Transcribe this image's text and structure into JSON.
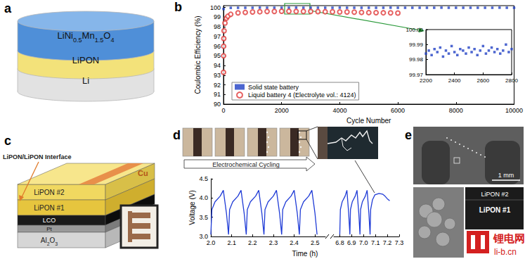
{
  "panels": {
    "a": {
      "label": "a",
      "layers": [
        "LiNi0.5Mn1.5O4",
        "LiPON",
        "Li"
      ]
    },
    "b": {
      "label": "b"
    },
    "c": {
      "label": "c",
      "interface_label": "LiPON/LiPON Interface",
      "layers": [
        "LiPON #2",
        "LiPON #1",
        "LCO",
        "Pt",
        "Al2O3"
      ],
      "contact": "Cu"
    },
    "d": {
      "label": "d",
      "caption": "Electrochemical Cycling"
    },
    "e": {
      "label": "e",
      "scale_bar": "1 mm",
      "layers": [
        "LiPON #2",
        "LiPON #1"
      ]
    }
  },
  "watermark": {
    "text": "锂电网",
    "url": "li-b.cn"
  },
  "chart_data": [
    {
      "type": "scatter",
      "x_label": "Cycle Number",
      "y_label": "Coulombic Efficiency (%)",
      "xlim": [
        0,
        10000
      ],
      "xticks": [
        0,
        2000,
        4000,
        6000,
        8000,
        10000
      ],
      "ylim": [
        90,
        100.2
      ],
      "yticks": [
        90,
        91,
        92,
        93,
        94,
        95,
        96,
        97,
        98,
        99,
        100
      ],
      "grid": false,
      "legend": "lower left",
      "series": [
        {
          "name": "Solid state battery",
          "color": "#2140c4",
          "marker": "square",
          "x": [
            1,
            250,
            500,
            750,
            1000,
            1250,
            1500,
            1750,
            2000,
            2250,
            2500,
            2750,
            3000,
            3250,
            3500,
            3750,
            4000,
            4250,
            4500,
            4750,
            5000,
            5250,
            5500,
            5750,
            6000,
            6250,
            6500,
            6750,
            7000,
            7250,
            7500,
            7750,
            8000,
            8250,
            8500,
            8750,
            9000,
            9250,
            9500,
            9750,
            10000
          ],
          "values": [
            99.85,
            99.97,
            99.98,
            99.98,
            99.98,
            99.99,
            99.98,
            99.98,
            99.98,
            99.98,
            99.99,
            99.98,
            99.98,
            99.98,
            99.98,
            99.98,
            99.99,
            99.98,
            99.98,
            99.98,
            99.98,
            99.98,
            99.98,
            99.99,
            99.98,
            99.98,
            99.98,
            99.98,
            99.98,
            99.98,
            99.99,
            99.98,
            99.98,
            99.98,
            99.98,
            99.98,
            99.98,
            99.98,
            99.99,
            99.98,
            99.98
          ]
        },
        {
          "name": "Liquid battery 4 (Electrolyte vol.: 4124)",
          "color": "#e03a3a",
          "marker": "circle_open",
          "x": [
            1,
            3,
            5,
            10,
            20,
            50,
            100,
            150,
            250,
            500,
            750,
            1000,
            1250,
            1500,
            1750,
            2000,
            2250,
            2500,
            2750,
            3000,
            3250,
            3500,
            3750,
            4000,
            4250,
            4500,
            4750,
            5000,
            5250,
            5500,
            5750,
            6000
          ],
          "values": [
            93.3,
            95.0,
            96.0,
            96.8,
            97.6,
            98.4,
            98.9,
            99.1,
            99.3,
            99.45,
            99.5,
            99.55,
            99.57,
            99.6,
            99.6,
            99.62,
            99.62,
            99.6,
            99.6,
            99.6,
            99.58,
            99.57,
            99.56,
            99.55,
            99.54,
            99.52,
            99.5,
            99.48,
            99.47,
            99.46,
            99.45,
            99.43
          ]
        }
      ]
    },
    {
      "type": "scatter",
      "xlim": [
        2200,
        2800
      ],
      "xticks": [
        2200,
        2400,
        2600,
        2800
      ],
      "ylim": [
        99.97,
        100
      ],
      "yticks": [
        99.97,
        99.98,
        99.99,
        {
          "value": 100,
          "label": "100.00"
        }
      ],
      "grid": false,
      "series": [
        {
          "color": "#2140c4",
          "marker": "square",
          "x": [
            2200,
            2220,
            2240,
            2260,
            2280,
            2300,
            2320,
            2340,
            2360,
            2380,
            2400,
            2420,
            2440,
            2460,
            2480,
            2500,
            2520,
            2540,
            2560,
            2580,
            2600,
            2620,
            2640,
            2660,
            2680,
            2700,
            2720,
            2740,
            2760,
            2780,
            2800
          ],
          "values": [
            99.984,
            99.986,
            99.983,
            99.987,
            99.985,
            99.988,
            99.982,
            99.986,
            99.984,
            99.989,
            99.985,
            99.983,
            99.987,
            99.986,
            99.984,
            99.988,
            99.985,
            99.987,
            99.983,
            99.986,
            99.989,
            99.984,
            99.986,
            99.988,
            99.985,
            99.987,
            99.984,
            99.986,
            99.99,
            99.985,
            99.987
          ]
        }
      ]
    },
    {
      "type": "line",
      "x_label": "Time (h)",
      "y_label": "Voltage (V)",
      "xlim": [
        2,
        2.55
      ],
      "xticks": [
        {
          "value": 2,
          "label": "2.0"
        },
        2.1,
        2.2,
        2.3,
        2.4,
        2.5
      ],
      "ylim": [
        3,
        4.5
      ],
      "yticks": [
        {
          "value": 3,
          "label": "3.0"
        },
        3.5,
        {
          "value": 4,
          "label": "4.0"
        },
        4.5
      ],
      "grid": false,
      "series": [
        {
          "color": "#1f3bd6",
          "marker": "none",
          "x": [
            2.0,
            2.005,
            2.02,
            2.045,
            2.06,
            2.065,
            2.075,
            2.085,
            2.09,
            2.105,
            2.13,
            2.145,
            2.15,
            2.16,
            2.17,
            2.175,
            2.19,
            2.215,
            2.23,
            2.235,
            2.245,
            2.255,
            2.26,
            2.275,
            2.3,
            2.315,
            2.32,
            2.33,
            2.34,
            2.345,
            2.36,
            2.385,
            2.4,
            2.405,
            2.415,
            2.425,
            2.43,
            2.445,
            2.47,
            2.485,
            2.49,
            2.5,
            2.51
          ],
          "values": [
            3.05,
            3.7,
            3.9,
            4.05,
            4.2,
            4.0,
            3.6,
            3.05,
            3.7,
            3.9,
            4.05,
            4.2,
            4.0,
            3.6,
            3.05,
            3.7,
            3.9,
            4.05,
            4.2,
            4.0,
            3.6,
            3.05,
            3.7,
            3.9,
            4.05,
            4.2,
            4.0,
            3.6,
            3.05,
            3.7,
            3.9,
            4.05,
            4.2,
            4.0,
            3.6,
            3.05,
            3.7,
            3.9,
            4.05,
            4.2,
            4.0,
            3.6,
            3.05
          ]
        }
      ]
    },
    {
      "type": "line",
      "xlim": [
        6.75,
        7.3
      ],
      "xticks": [
        6.8,
        6.9,
        {
          "value": 7,
          "label": "7.0"
        },
        7.1,
        7.2,
        7.3
      ],
      "ylim": [
        3,
        4.5
      ],
      "tick_labels": "x",
      "grid": false,
      "series": [
        {
          "color": "#1f3bd6",
          "marker": "none",
          "x": [
            6.8,
            6.805,
            6.82,
            6.845,
            6.86,
            6.865,
            6.875,
            6.885,
            6.89,
            6.905,
            6.93,
            6.945,
            6.95,
            6.96,
            6.97,
            6.975,
            6.99,
            7.015,
            7.03,
            7.035,
            7.045,
            7.055,
            7.06,
            7.075,
            7.095,
            7.13,
            7.16,
            7.18,
            7.2,
            7.22
          ],
          "values": [
            3.05,
            3.7,
            3.9,
            4.05,
            4.2,
            4.0,
            3.6,
            3.05,
            3.7,
            3.9,
            4.05,
            4.2,
            4.0,
            3.6,
            3.05,
            3.7,
            3.9,
            4.05,
            4.2,
            4.0,
            3.6,
            3.05,
            3.7,
            3.95,
            4.08,
            4.12,
            4.1,
            4.05,
            3.98,
            3.93
          ]
        }
      ]
    }
  ]
}
